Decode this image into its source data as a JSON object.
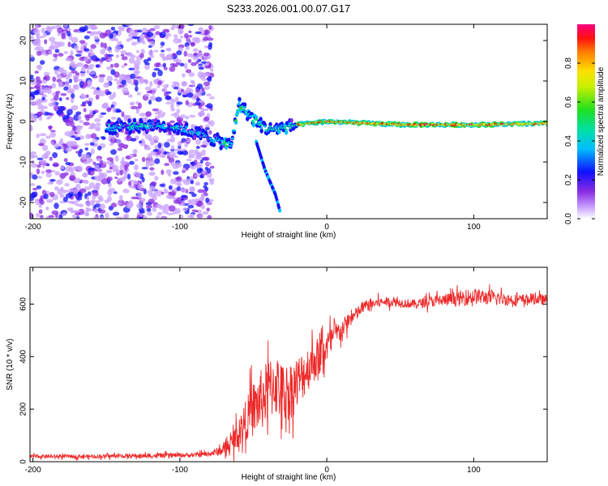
{
  "title": "S233.2026.001.00.07.G17",
  "chart_data": [
    {
      "type": "heatmap",
      "panel": "top",
      "xlabel": "Height of straight line (km)",
      "ylabel": "Frequency (Hz)",
      "xlim": [
        -202,
        150
      ],
      "ylim": [
        -24,
        24
      ],
      "xticks": [
        -200,
        -100,
        0,
        100
      ],
      "yticks": [
        -20,
        -10,
        0,
        10,
        20
      ],
      "colorbar": {
        "label": "Normalized spectral amplitude",
        "range": [
          0,
          1
        ],
        "ticks": [
          0.0,
          0.2,
          0.4,
          0.6,
          0.8
        ]
      },
      "ridge": {
        "noise_region_x": [
          -202,
          -78
        ],
        "trace": [
          {
            "x": -150,
            "f": -1.5
          },
          {
            "x": -120,
            "f": -1.0
          },
          {
            "x": -100,
            "f": -1.5
          },
          {
            "x": -80,
            "f": -4.0
          },
          {
            "x": -65,
            "f": -6.0
          },
          {
            "x": -60,
            "f": 4.5
          },
          {
            "x": -50,
            "f": 0.5
          },
          {
            "x": -40,
            "f": -2.0
          },
          {
            "x": -30,
            "f": -1.5
          },
          {
            "x": -20,
            "f": -0.8
          },
          {
            "x": 0,
            "f": 0.0
          },
          {
            "x": 50,
            "f": -0.8
          },
          {
            "x": 100,
            "f": -0.8
          },
          {
            "x": 150,
            "f": -0.5
          }
        ],
        "side_branch": [
          {
            "x": -48,
            "f": -5
          },
          {
            "x": -42,
            "f": -12
          },
          {
            "x": -35,
            "f": -18
          },
          {
            "x": -32,
            "f": -22
          }
        ]
      }
    },
    {
      "type": "line",
      "panel": "bottom",
      "xlabel": "Height of straight line (km)",
      "ylabel": "SNR (10 * v/v)",
      "xlim": [
        -202,
        150
      ],
      "ylim": [
        0,
        740
      ],
      "xticks": [
        -200,
        -100,
        0,
        100
      ],
      "yticks": [
        0,
        200,
        400,
        600
      ],
      "series": [
        {
          "name": "SNR",
          "color": "#ee2a2a",
          "x": [
            -202,
            -180,
            -160,
            -140,
            -120,
            -100,
            -90,
            -80,
            -70,
            -65,
            -60,
            -55,
            -50,
            -45,
            -40,
            -35,
            -30,
            -25,
            -20,
            -15,
            -10,
            -5,
            0,
            5,
            10,
            15,
            20,
            25,
            30,
            35,
            40,
            50,
            60,
            70,
            80,
            90,
            100,
            110,
            120,
            130,
            140,
            150
          ],
          "values": [
            20,
            20,
            20,
            22,
            22,
            25,
            25,
            30,
            45,
            70,
            110,
            160,
            200,
            230,
            270,
            300,
            260,
            270,
            300,
            340,
            380,
            400,
            440,
            480,
            500,
            540,
            560,
            590,
            600,
            605,
            610,
            605,
            600,
            610,
            615,
            620,
            630,
            625,
            620,
            615,
            620,
            615
          ],
          "noise_amplitude": [
            10,
            10,
            10,
            12,
            12,
            12,
            12,
            15,
            30,
            50,
            80,
            110,
            150,
            170,
            170,
            180,
            160,
            160,
            150,
            130,
            120,
            110,
            90,
            70,
            55,
            45,
            40,
            35,
            30,
            28,
            25,
            25,
            25,
            30,
            35,
            40,
            45,
            40,
            35,
            30,
            30,
            30
          ]
        }
      ]
    }
  ]
}
